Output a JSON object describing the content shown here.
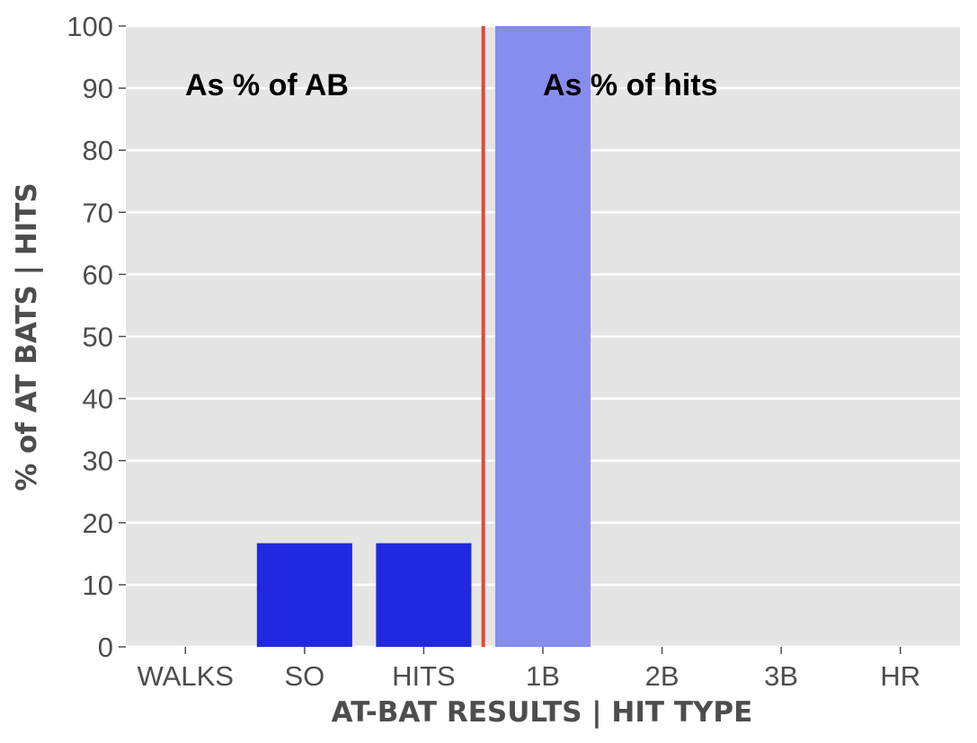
{
  "chart_data": {
    "type": "bar",
    "categories": [
      "WALKS",
      "SO",
      "HITS",
      "1B",
      "2B",
      "3B",
      "HR"
    ],
    "values": [
      0,
      16.7,
      16.7,
      100,
      0,
      0,
      0
    ],
    "bar_groups": [
      "ab",
      "ab",
      "ab",
      "hits",
      "hits",
      "hits",
      "hits"
    ],
    "xlabel": "AT-BAT RESULTS | HIT TYPE",
    "ylabel": "% of AT BATS | HITS",
    "ylim": [
      0,
      100
    ],
    "yticks": [
      0,
      10,
      20,
      30,
      40,
      50,
      60,
      70,
      80,
      90,
      100
    ],
    "grid": true,
    "divider_after_category": "HITS",
    "annotations": [
      {
        "text": "As % of AB"
      },
      {
        "text": "As % of hits"
      }
    ],
    "colors": {
      "plot_bg": "#e5e5e5",
      "grid": "#ffffff",
      "bar_ab": "#2029e0",
      "bar_hits": "#878cef",
      "divider": "#e24a33",
      "tick_text": "#4d4d4d",
      "tick_mark": "#4d4d4d"
    }
  }
}
